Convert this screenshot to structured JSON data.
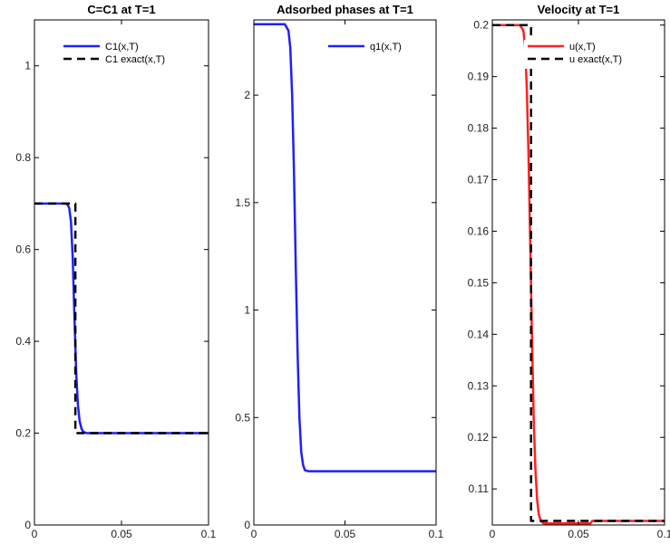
{
  "chart_data": [
    {
      "type": "line",
      "title": "C=C1 at T=1",
      "xlabel": "",
      "ylabel": "",
      "xlim": [
        0,
        0.1
      ],
      "ylim": [
        0,
        1.1
      ],
      "grid": false,
      "legend_position": "top-right",
      "x_ticks": [
        0,
        0.05,
        0.1
      ],
      "x_tick_labels": [
        "0",
        "0.05",
        "0.1"
      ],
      "y_ticks": [
        0,
        0.2,
        0.4,
        0.6,
        0.8,
        1
      ],
      "y_tick_labels": [
        "0",
        "0.2",
        "0.4",
        "0.6",
        "0.8",
        "1"
      ],
      "series": [
        {
          "name": "C1(x,T)",
          "color": "#1f1fff",
          "style": "solid",
          "x": [
            0,
            0.018,
            0.019,
            0.02,
            0.021,
            0.022,
            0.023,
            0.024,
            0.025,
            0.026,
            0.027,
            0.028,
            0.03,
            0.035,
            0.1
          ],
          "y": [
            0.7,
            0.7,
            0.698,
            0.69,
            0.66,
            0.58,
            0.45,
            0.33,
            0.26,
            0.225,
            0.21,
            0.203,
            0.2,
            0.2,
            0.2
          ]
        },
        {
          "name": "C1 exact(x,T)",
          "color": "#000000",
          "style": "dashed",
          "x": [
            0,
            0.0235,
            0.0235,
            0.1
          ],
          "y": [
            0.7,
            0.7,
            0.2,
            0.2
          ]
        }
      ]
    },
    {
      "type": "line",
      "title": "Adsorbed phases at T=1",
      "xlabel": "",
      "ylabel": "",
      "xlim": [
        0,
        0.1
      ],
      "ylim": [
        0,
        2.35
      ],
      "grid": false,
      "legend_position": "top-right",
      "x_ticks": [
        0,
        0.05,
        0.1
      ],
      "x_tick_labels": [
        "0",
        "0.05",
        "0.1"
      ],
      "y_ticks": [
        0,
        0.5,
        1,
        1.5,
        2
      ],
      "y_tick_labels": [
        "0",
        "0.5",
        "1",
        "1.5",
        "2"
      ],
      "series": [
        {
          "name": "q1(x,T)",
          "color": "#1f1fff",
          "style": "solid",
          "x": [
            0,
            0.017,
            0.019,
            0.02,
            0.021,
            0.022,
            0.023,
            0.024,
            0.025,
            0.026,
            0.027,
            0.028,
            0.03,
            0.1
          ],
          "y": [
            2.33,
            2.33,
            2.3,
            2.22,
            2.0,
            1.65,
            1.2,
            0.8,
            0.5,
            0.34,
            0.28,
            0.255,
            0.25,
            0.25
          ]
        }
      ]
    },
    {
      "type": "line",
      "title": "Velocity at T=1",
      "xlabel": "",
      "ylabel": "",
      "xlim": [
        0,
        0.1
      ],
      "ylim": [
        0.103,
        0.201
      ],
      "grid": false,
      "legend_position": "top-right",
      "x_ticks": [
        0,
        0.05,
        0.1
      ],
      "x_tick_labels": [
        "0",
        "0.05",
        "0.1"
      ],
      "y_ticks": [
        0.11,
        0.12,
        0.13,
        0.14,
        0.15,
        0.16,
        0.17,
        0.18,
        0.19,
        0.2
      ],
      "y_tick_labels": [
        "0.11",
        "0.12",
        "0.13",
        "0.14",
        "0.15",
        "0.16",
        "0.17",
        "0.18",
        "0.19",
        "0.2"
      ],
      "series": [
        {
          "name": "u(x,T)",
          "color": "#ff2020",
          "style": "solid",
          "x": [
            0,
            0.016,
            0.018,
            0.019,
            0.02,
            0.021,
            0.022,
            0.023,
            0.024,
            0.025,
            0.026,
            0.027,
            0.028,
            0.029,
            0.03,
            0.04,
            0.057,
            0.058,
            0.065,
            0.1
          ],
          "y": [
            0.2,
            0.2,
            0.199,
            0.196,
            0.188,
            0.175,
            0.158,
            0.14,
            0.124,
            0.114,
            0.108,
            0.105,
            0.104,
            0.1035,
            0.1033,
            0.1033,
            0.1033,
            0.1038,
            0.1038,
            0.1038
          ]
        },
        {
          "name": "u exact(x,T)",
          "color": "#000000",
          "style": "dashed",
          "x": [
            0,
            0.0225,
            0.0225,
            0.1
          ],
          "y": [
            0.2,
            0.2,
            0.1038,
            0.1038
          ]
        }
      ]
    }
  ]
}
